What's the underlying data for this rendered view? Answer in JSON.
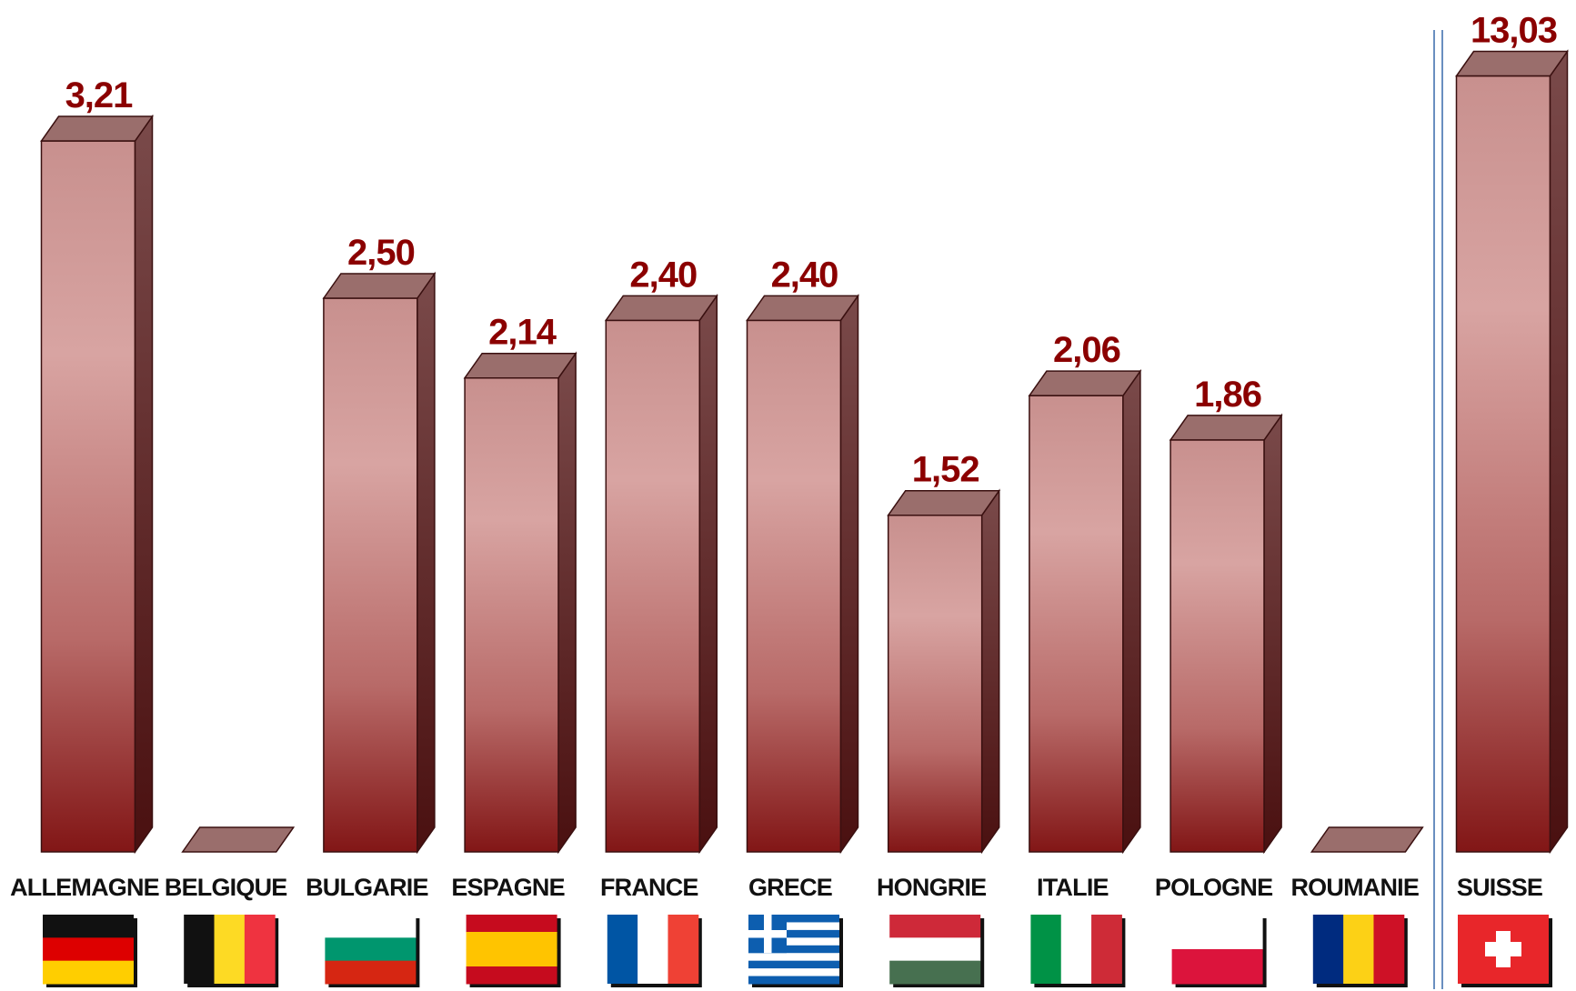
{
  "chart_data": [
    {
      "type": "bar",
      "categories": [
        "ALLEMAGNE",
        "BELGIQUE",
        "BULGARIE",
        "ESPAGNE",
        "FRANCE",
        "GRECE",
        "HONGRIE",
        "ITALIE",
        "POLOGNE",
        "ROUMANIE"
      ],
      "values": [
        3.21,
        0,
        2.5,
        2.14,
        2.4,
        2.4,
        1.52,
        2.06,
        1.86,
        0
      ],
      "value_labels": [
        "3,21",
        null,
        "2,50",
        "2,14",
        "2,40",
        "2,40",
        "1,52",
        "2,06",
        "1,86",
        null
      ],
      "ylim": [
        0,
        3.5
      ],
      "color": "#8b1a1a"
    },
    {
      "type": "bar",
      "categories": [
        "SUISSE"
      ],
      "values": [
        13.03
      ],
      "value_labels": [
        "13,03"
      ],
      "ylim": [
        0,
        14
      ],
      "color": "#8b1a1a"
    }
  ]
}
